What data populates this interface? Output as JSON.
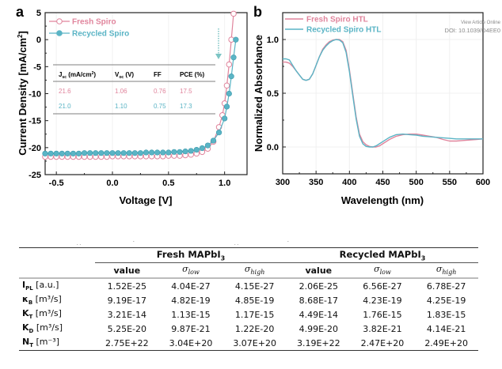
{
  "watermark": {
    "line1": "View Article Online",
    "line2": "DOI: 10.1039/D4EE0"
  },
  "chart_data": [
    {
      "panel": "a",
      "type": "line",
      "title": "",
      "xlabel": "Voltage [V]",
      "ylabel": "Current Density [mA/cm²]",
      "xlim": [
        -0.6,
        1.2
      ],
      "ylim": [
        -25,
        5
      ],
      "xticks": [
        "-0.5",
        "0.0",
        "0.5",
        "1.0"
      ],
      "xtick_values": [
        -0.5,
        0.0,
        0.5,
        1.0
      ],
      "yticks": [
        "5",
        "0",
        "-5",
        "-10",
        "-15",
        "-20",
        "-25"
      ],
      "ytick_values": [
        5,
        0,
        -5,
        -10,
        -15,
        -20,
        -25
      ],
      "legend_position": "top-left",
      "series": [
        {
          "name": "Fresh Spiro",
          "color": "#e0849c",
          "marker": "open-circle",
          "x": [
            -0.6,
            -0.55,
            -0.5,
            -0.45,
            -0.4,
            -0.35,
            -0.3,
            -0.25,
            -0.2,
            -0.15,
            -0.1,
            -0.05,
            0.0,
            0.05,
            0.1,
            0.15,
            0.2,
            0.25,
            0.3,
            0.35,
            0.4,
            0.45,
            0.5,
            0.55,
            0.6,
            0.65,
            0.7,
            0.75,
            0.8,
            0.85,
            0.9,
            0.95,
            0.98,
            1.0,
            1.02,
            1.04,
            1.06,
            1.08
          ],
          "y": [
            -21.7,
            -21.7,
            -21.7,
            -21.7,
            -21.7,
            -21.7,
            -21.7,
            -21.7,
            -21.7,
            -21.7,
            -21.7,
            -21.7,
            -21.6,
            -21.6,
            -21.6,
            -21.6,
            -21.6,
            -21.6,
            -21.6,
            -21.6,
            -21.6,
            -21.6,
            -21.5,
            -21.5,
            -21.5,
            -21.4,
            -21.3,
            -21.1,
            -20.8,
            -20.2,
            -18.9,
            -16.2,
            -14.0,
            -11.8,
            -8.5,
            -4.6,
            0.0,
            4.8
          ]
        },
        {
          "name": "Recycled Spiro",
          "color": "#5ab4c5",
          "marker": "filled-circle",
          "x": [
            -0.6,
            -0.55,
            -0.5,
            -0.45,
            -0.4,
            -0.35,
            -0.3,
            -0.25,
            -0.2,
            -0.15,
            -0.1,
            -0.05,
            0.0,
            0.05,
            0.1,
            0.15,
            0.2,
            0.25,
            0.3,
            0.35,
            0.4,
            0.45,
            0.5,
            0.55,
            0.6,
            0.65,
            0.7,
            0.75,
            0.8,
            0.85,
            0.9,
            0.95,
            1.0,
            1.02,
            1.04,
            1.06,
            1.08,
            1.1
          ],
          "y": [
            -21.1,
            -21.1,
            -21.1,
            -21.1,
            -21.1,
            -21.1,
            -21.1,
            -21.0,
            -21.0,
            -21.0,
            -21.0,
            -21.0,
            -21.0,
            -21.0,
            -21.0,
            -21.0,
            -21.0,
            -21.0,
            -20.9,
            -20.9,
            -20.9,
            -20.9,
            -20.9,
            -20.8,
            -20.8,
            -20.7,
            -20.6,
            -20.4,
            -20.1,
            -19.6,
            -18.7,
            -17.2,
            -14.6,
            -12.4,
            -10.0,
            -6.8,
            -3.3,
            0.0
          ]
        }
      ],
      "annotation": "dotted-down-arrow",
      "inset_table": {
        "headers": [
          "J_sc (mA/cm²)",
          "V_oc (V)",
          "FF",
          "PCE (%)"
        ],
        "rows": [
          {
            "series": "Fresh Spiro",
            "values": [
              "21.6",
              "1.06",
              "0.76",
              "17.5"
            ]
          },
          {
            "series": "Recycled Spiro",
            "values": [
              "21.0",
              "1.10",
              "0.75",
              "17.3"
            ]
          }
        ]
      }
    },
    {
      "panel": "b",
      "type": "line",
      "title": "",
      "xlabel": "Wavelength (nm)",
      "ylabel": "Normalized Absorbance",
      "xlim": [
        300,
        600
      ],
      "ylim": [
        -0.25,
        1.25
      ],
      "xticks": [
        "300",
        "350",
        "400",
        "450",
        "500",
        "550",
        "600"
      ],
      "xtick_values": [
        300,
        350,
        400,
        450,
        500,
        550,
        600
      ],
      "yticks": [
        "1.0",
        "0.5",
        "0.0"
      ],
      "ytick_values": [
        1.0,
        0.5,
        0.0
      ],
      "grid": true,
      "legend_position": "top-left",
      "series": [
        {
          "name": "Fresh Spiro HTL",
          "color": "#e0849c",
          "x": [
            300,
            305,
            310,
            315,
            320,
            325,
            330,
            335,
            340,
            345,
            350,
            355,
            360,
            365,
            370,
            375,
            380,
            385,
            390,
            395,
            400,
            405,
            410,
            415,
            420,
            425,
            430,
            435,
            440,
            445,
            450,
            460,
            470,
            480,
            490,
            500,
            510,
            520,
            530,
            540,
            550,
            560,
            570,
            580,
            590,
            600
          ],
          "y": [
            0.79,
            0.79,
            0.78,
            0.75,
            0.71,
            0.67,
            0.63,
            0.62,
            0.63,
            0.68,
            0.76,
            0.84,
            0.91,
            0.95,
            0.98,
            0.995,
            1.0,
            1.0,
            0.98,
            0.9,
            0.72,
            0.5,
            0.28,
            0.12,
            0.05,
            0.02,
            0.005,
            0.0,
            0.0,
            0.01,
            0.03,
            0.07,
            0.1,
            0.115,
            0.12,
            0.12,
            0.11,
            0.1,
            0.09,
            0.07,
            0.055,
            0.055,
            0.06,
            0.065,
            0.07,
            0.075
          ]
        },
        {
          "name": "Recycled Spiro HTL",
          "color": "#5ab4c5",
          "x": [
            300,
            305,
            310,
            315,
            320,
            325,
            330,
            335,
            340,
            345,
            350,
            355,
            360,
            365,
            370,
            375,
            380,
            385,
            390,
            395,
            400,
            405,
            410,
            415,
            420,
            425,
            430,
            435,
            440,
            445,
            450,
            460,
            470,
            480,
            490,
            500,
            510,
            520,
            530,
            540,
            550,
            560,
            570,
            580,
            590,
            600
          ],
          "y": [
            0.82,
            0.82,
            0.81,
            0.76,
            0.71,
            0.67,
            0.63,
            0.62,
            0.63,
            0.68,
            0.76,
            0.84,
            0.9,
            0.94,
            0.97,
            0.99,
            1.0,
            0.995,
            0.97,
            0.88,
            0.7,
            0.48,
            0.26,
            0.1,
            0.03,
            0.005,
            0.0,
            0.0,
            0.01,
            0.03,
            0.05,
            0.09,
            0.115,
            0.12,
            0.115,
            0.11,
            0.1,
            0.095,
            0.09,
            0.085,
            0.08,
            0.075,
            0.075,
            0.075,
            0.075,
            0.075
          ]
        }
      ]
    }
  ],
  "table": {
    "groups": [
      "Fresh MAPbI3",
      "Recycled MAPbI3"
    ],
    "group_main": [
      "Fresh MAPbI",
      "Recycled MAPbI"
    ],
    "group_sub": "3",
    "columns": [
      "value",
      "σlow",
      "σhigh",
      "value",
      "σlow",
      "σhigh"
    ],
    "sigma": "σ",
    "low": "low",
    "high": "high",
    "rows": [
      {
        "label": "I_PL [a.u.]",
        "sym": "I",
        "sub": "PL",
        "unit": " [a.u.]",
        "values": [
          "1.52E-25",
          "4.04E-27",
          "4.15E-27",
          "2.06E-25",
          "6.56E-27",
          "6.78E-27"
        ]
      },
      {
        "label": "κ_B [m³/s]",
        "sym": "κ",
        "sub": "B",
        "unit": " [m³/s]",
        "values": [
          "9.19E-17",
          "4.82E-19",
          "4.85E-19",
          "8.68E-17",
          "4.23E-19",
          "4.25E-19"
        ]
      },
      {
        "label": "K_T [m³/s]",
        "sym": "K",
        "sub": "T",
        "unit": " [m³/s]",
        "values": [
          "3.21E-14",
          "1.13E-15",
          "1.17E-15",
          "4.49E-14",
          "1.76E-15",
          "1.83E-15"
        ]
      },
      {
        "label": "K_D [m³/s]",
        "sym": "K",
        "sub": "D",
        "unit": " [m³/s]",
        "values": [
          "5.25E-20",
          "9.87E-21",
          "1.22E-20",
          "4.99E-20",
          "3.82E-21",
          "4.14E-21"
        ]
      },
      {
        "label": "N_T [m⁻³]",
        "sym": "N",
        "sub": "T",
        "unit": " [m⁻³]",
        "values": [
          "2.75E+22",
          "3.04E+20",
          "3.07E+20",
          "3.19E+22",
          "2.47E+20",
          "2.49E+20"
        ]
      }
    ]
  },
  "labels": {
    "panel_a": "a",
    "panel_b": "b"
  }
}
